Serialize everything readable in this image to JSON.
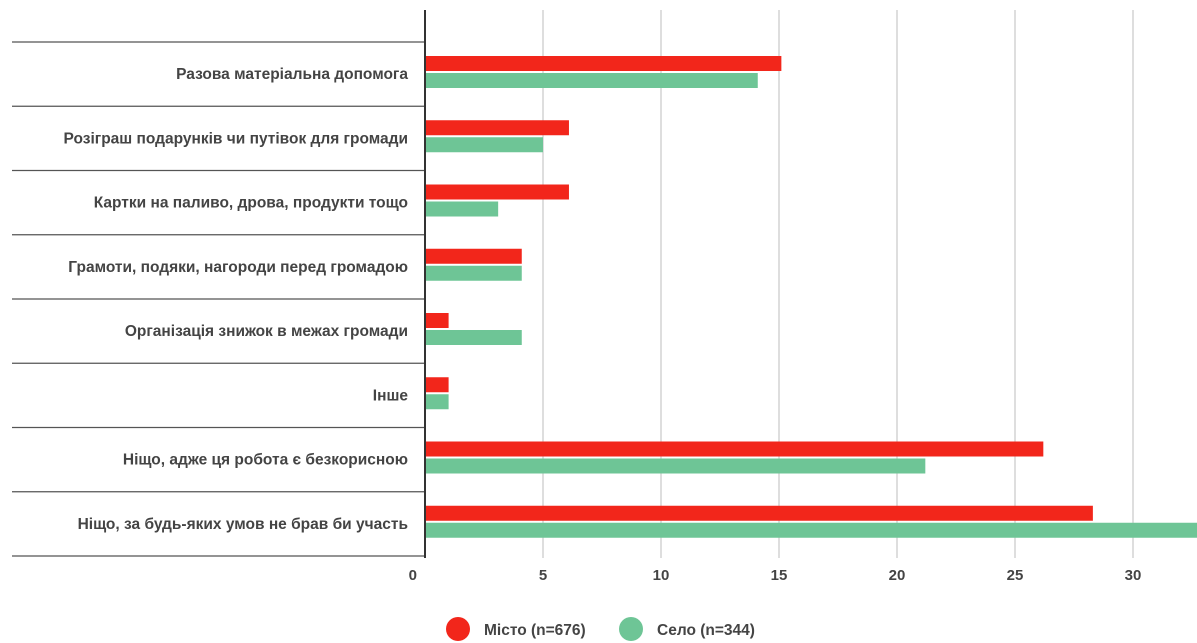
{
  "chart_data": {
    "type": "bar",
    "orientation": "horizontal",
    "categories": [
      "Разова матеріальна допомога",
      "Розіграш подарунків чи путівок для громади",
      "Картки на паливо, дрова, продукти тощо",
      "Грамоти, подяки, нагороди перед громадою",
      "Організація знижок в межах громади",
      "Інше",
      "Ніщо, адже ця робота є безкорисною",
      "Ніщо, за будь-яких умов не брав би участь"
    ],
    "series": [
      {
        "name": "Місто (n=676)",
        "color": "#f2261b",
        "values": [
          15.1,
          6.1,
          6.1,
          4.1,
          1.0,
          1.0,
          26.2,
          28.3
        ]
      },
      {
        "name": "Село (n=344)",
        "color": "#6ec596",
        "values": [
          14.1,
          5.0,
          3.1,
          4.1,
          4.1,
          1.0,
          21.2,
          33.4
        ]
      }
    ],
    "xticks": [
      "0",
      "5",
      "10",
      "15",
      "20",
      "25",
      "30"
    ],
    "xlim": [
      0,
      33
    ],
    "grid": true,
    "legend_position": "bottom-center",
    "title": "",
    "xlabel": "",
    "ylabel": ""
  }
}
